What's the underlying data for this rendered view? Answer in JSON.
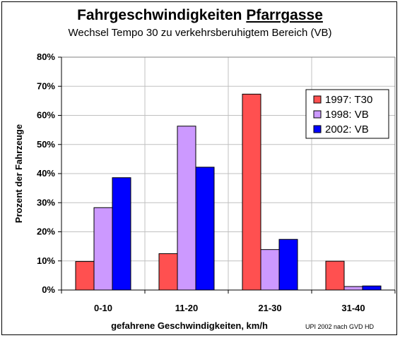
{
  "chart_data": {
    "type": "bar",
    "title_main": "Fahrgeschwindigkeiten ",
    "title_underlined": "Pfarrgasse",
    "subtitle": "Wechsel Tempo 30 zu verkehrsberuhigtem Bereich (VB)",
    "xlabel": "gefahrene Geschwindigkeiten, km/h",
    "ylabel": "Prozent der Fahrzeuge",
    "source_note": "UPI 2002 nach GVD HD",
    "categories": [
      "0-10",
      "11-20",
      "21-30",
      "31-40"
    ],
    "ylim": [
      0,
      80
    ],
    "yticks": [
      0,
      10,
      20,
      30,
      40,
      50,
      60,
      70,
      80
    ],
    "ytick_labels": [
      "0%",
      "10%",
      "20%",
      "30%",
      "40%",
      "50%",
      "60%",
      "70%",
      "80%"
    ],
    "grid": true,
    "legend_position": "right",
    "series": [
      {
        "name": "1997: T30",
        "color": "#ff5050",
        "values": [
          9.8,
          12.5,
          67.3,
          9.9
        ]
      },
      {
        "name": "1998: VB",
        "color": "#cc99ff",
        "values": [
          28.3,
          56.3,
          13.9,
          1.2
        ]
      },
      {
        "name": "2002: VB",
        "color": "#0000ff",
        "values": [
          38.6,
          42.2,
          17.4,
          1.4
        ]
      }
    ]
  }
}
